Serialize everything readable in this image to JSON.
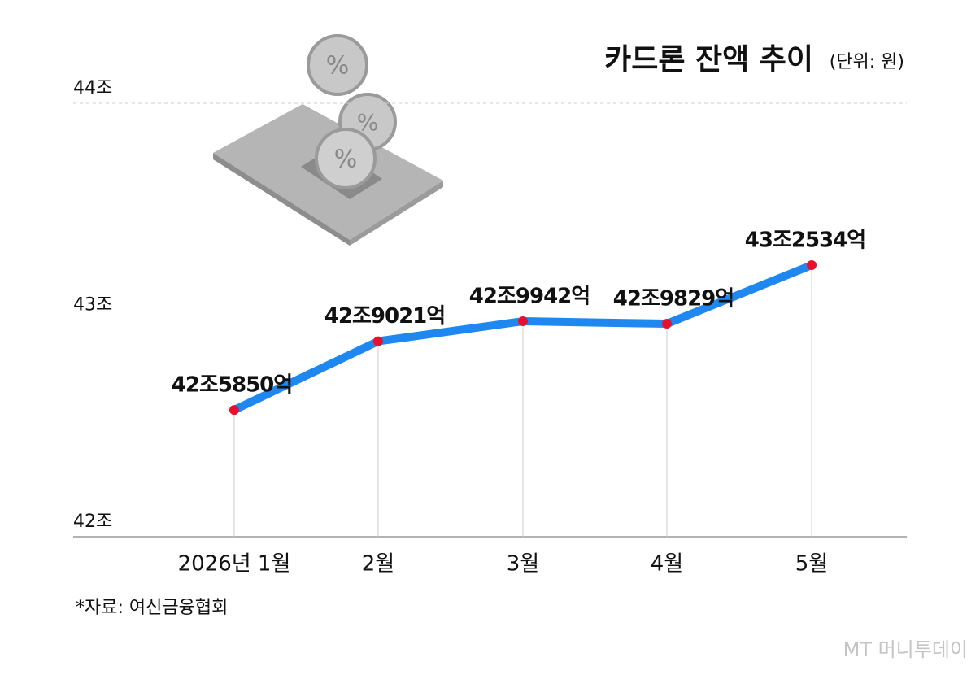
{
  "chart_data": {
    "type": "line",
    "title": "카드론 잔액 추이",
    "subtitle": "(단위: 원)",
    "source": "*자료: 여신금융협회",
    "watermark": "MT 머니투데이",
    "categories": [
      "2026년 1월",
      "2월",
      "3월",
      "4월",
      "5월"
    ],
    "values": [
      42.585,
      42.9021,
      42.9942,
      42.9829,
      43.2534
    ],
    "value_labels": [
      "42조5850억",
      "42조9021억",
      "42조9942억",
      "42조9829억",
      "43조2534억"
    ],
    "color": "#1e88f0",
    "marker_color": "#e8112d",
    "ylim": [
      42,
      44
    ],
    "yticks": [
      {
        "value": 42,
        "label": "42조"
      },
      {
        "value": 43,
        "label": "43조"
      },
      {
        "value": 44,
        "label": "44조"
      }
    ],
    "grid": true
  }
}
